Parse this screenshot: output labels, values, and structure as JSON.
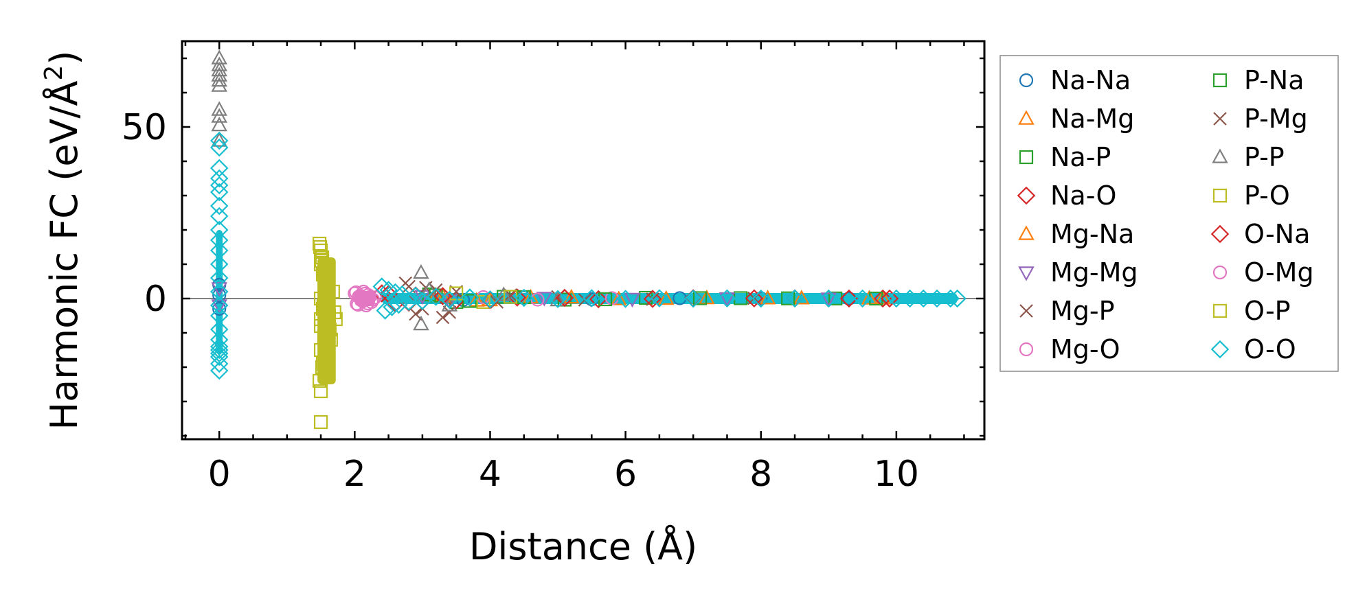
{
  "chart_data": {
    "type": "scatter",
    "title": "",
    "xlabel": "Distance (Å)",
    "ylabel_main": "Harmonic FC (eV/Å",
    "ylabel_sup": "2",
    "ylabel_close": ")",
    "xlim": [
      -0.55,
      11.3
    ],
    "ylim": [
      -41,
      75
    ],
    "xticks": [
      0,
      2,
      4,
      6,
      8,
      10
    ],
    "xtick_labels": [
      "0",
      "2",
      "4",
      "6",
      "8",
      "10"
    ],
    "yticks": [
      0,
      50
    ],
    "ytick_labels": [
      "0",
      "50"
    ],
    "x_minor_step": 0.5,
    "y_minor_step": 10,
    "zero_line": true,
    "grid": false,
    "legend_position": "outside-right",
    "series": [
      {
        "name": "Na-Na",
        "marker": "circle",
        "color": "#1f77b4",
        "x": [
          0,
          0,
          0,
          3.3,
          3.6,
          4.5,
          5.5,
          6.8,
          8.0,
          9.3
        ],
        "y": [
          4,
          -3,
          1,
          0.5,
          -0.4,
          0.3,
          -0.2,
          0.1,
          0.05,
          0
        ]
      },
      {
        "name": "Na-Mg",
        "marker": "triangle-up",
        "color": "#ff7f0e",
        "x": [
          3.2,
          3.8,
          4.6,
          5.9,
          7.2,
          8.6,
          9.8
        ],
        "y": [
          0.8,
          -0.6,
          0.3,
          -0.2,
          0.1,
          0.05,
          0.02
        ]
      },
      {
        "name": "Na-P",
        "marker": "square",
        "color": "#2ca02c",
        "x": [
          3.1,
          3.5,
          4.2,
          5.1,
          6.3,
          7.7,
          9.1
        ],
        "y": [
          1.2,
          -1.0,
          0.5,
          -0.3,
          0.2,
          0.1,
          0.02
        ]
      },
      {
        "name": "Na-O",
        "marker": "diamond",
        "color": "#d62728",
        "x": [
          2.4,
          2.6,
          2.9,
          3.5,
          4.4,
          5.6,
          7.0,
          8.5,
          9.8
        ],
        "y": [
          1.5,
          -1.4,
          0.9,
          -0.5,
          0.3,
          -0.2,
          0.1,
          0.05,
          0.0
        ]
      },
      {
        "name": "Mg-Na",
        "marker": "triangle-up",
        "color": "#ff7f0e",
        "x": [
          3.3,
          4.0,
          5.2,
          6.6,
          8.1,
          9.6
        ],
        "y": [
          0.6,
          -0.5,
          0.3,
          -0.1,
          0.05,
          0.0
        ]
      },
      {
        "name": "Mg-Mg",
        "marker": "triangle-down",
        "color": "#9467bd",
        "x": [
          0,
          0,
          3.0,
          3.4,
          4.8,
          6.1,
          7.5,
          9.0
        ],
        "y": [
          3,
          -2,
          0.7,
          -0.6,
          0.2,
          -0.1,
          0.05,
          0.0
        ]
      },
      {
        "name": "Mg-P",
        "marker": "x",
        "color": "#8c564b",
        "x": [
          2.75,
          2.9,
          3.05,
          3.3,
          3.5,
          4.1,
          5.0,
          6.4,
          7.9
        ],
        "y": [
          4.5,
          -4.5,
          3.2,
          -5.5,
          2.0,
          -1.0,
          0.5,
          -0.2,
          0.1
        ]
      },
      {
        "name": "Mg-O",
        "marker": "circle",
        "color": "#e377c2",
        "x": [
          2.0,
          2.03,
          2.06,
          2.1,
          2.13,
          2.17,
          2.2,
          2.25,
          2.3,
          3.9,
          4.7,
          5.8
        ],
        "y": [
          1.5,
          -1.5,
          0.5,
          -0.5,
          2.0,
          -2.0,
          1.0,
          -1.0,
          0.3,
          0.4,
          -0.3,
          0.1
        ]
      },
      {
        "name": "P-Na",
        "marker": "square",
        "color": "#2ca02c",
        "x": [
          3.2,
          3.7,
          4.5,
          5.7,
          7.1,
          8.4,
          9.7
        ],
        "y": [
          0.9,
          -0.7,
          0.4,
          -0.2,
          0.1,
          0.05,
          0.0
        ]
      },
      {
        "name": "P-Mg",
        "marker": "x",
        "color": "#8c564b",
        "x": [
          2.8,
          3.0,
          3.2,
          3.4,
          4.3,
          5.4
        ],
        "y": [
          3.5,
          -3.0,
          2.5,
          -4.0,
          1.0,
          -0.4
        ]
      },
      {
        "name": "P-P",
        "marker": "triangle-up",
        "color": "#7f7f7f",
        "x": [
          0,
          0,
          0,
          0,
          0,
          0,
          0,
          0,
          0,
          0,
          2.98,
          2.98,
          3.1,
          3.4,
          4.2,
          5.0
        ],
        "y": [
          70,
          68,
          66.5,
          65,
          63.5,
          62,
          55,
          53,
          50.5,
          46,
          7.5,
          -7.5,
          2.5,
          -2.0,
          1.0,
          -0.5
        ]
      },
      {
        "name": "P-O",
        "marker": "square",
        "color": "#bcbd22",
        "x": [
          1.48,
          1.5,
          1.52,
          1.5,
          1.55,
          1.6,
          1.57,
          1.5,
          1.53,
          1.62,
          1.5,
          1.55,
          1.58,
          1.6,
          1.52,
          1.48,
          1.65,
          1.72,
          3.5,
          3.9,
          4.3
        ],
        "y": [
          16,
          14,
          12,
          10,
          8,
          6,
          3,
          0,
          -3,
          -5,
          -8,
          -11,
          -14,
          -17,
          -20,
          -24,
          -12,
          -6,
          1.5,
          -1.0,
          0.5
        ]
      },
      {
        "name": "O-Na",
        "marker": "diamond",
        "color": "#d62728",
        "x": [
          2.5,
          2.8,
          3.3,
          4.0,
          5.1,
          6.4,
          7.9,
          9.3,
          9.9
        ],
        "y": [
          1.3,
          -1.2,
          0.7,
          -0.4,
          0.2,
          -0.1,
          0.05,
          0.0,
          0.0
        ]
      },
      {
        "name": "O-Mg",
        "marker": "circle",
        "color": "#e377c2",
        "x": [
          2.02,
          2.05,
          2.08,
          2.12,
          2.15,
          2.19,
          2.22,
          2.27
        ],
        "y": [
          1.8,
          -1.8,
          0.8,
          -0.8,
          1.4,
          -1.4,
          0.4,
          -0.3
        ]
      },
      {
        "name": "O-P",
        "marker": "square",
        "color": "#bcbd22",
        "x": [
          1.49,
          1.51,
          1.53,
          1.56,
          1.59,
          1.54,
          1.5,
          1.56,
          1.61,
          1.5,
          1.53,
          1.57,
          1.5,
          1.63,
          1.7,
          1.68,
          1.5
        ],
        "y": [
          15,
          11,
          7,
          4,
          1,
          -2,
          -6,
          -9,
          -12,
          -15,
          -19,
          -22,
          -27,
          -9,
          -4,
          2,
          -36
        ]
      },
      {
        "name": "O-O",
        "marker": "diamond",
        "color": "#17becf",
        "x": [
          0,
          0,
          0,
          0,
          0,
          0,
          0,
          0,
          0,
          0,
          0,
          0,
          0,
          0,
          0,
          0,
          0,
          0,
          0,
          0,
          0,
          0,
          0,
          0,
          2.4,
          2.45,
          2.5,
          2.55,
          2.6,
          2.65,
          2.7,
          2.8,
          2.9,
          3.0,
          3.2,
          3.4,
          3.7,
          4.0,
          4.5,
          5.0,
          5.5,
          6.0,
          6.5,
          7.0,
          7.5,
          8.0,
          8.5,
          9.0,
          9.5,
          10.0,
          10.2,
          10.4,
          10.6,
          10.8,
          10.9
        ],
        "y": [
          46,
          44,
          38,
          35,
          33,
          31,
          27,
          24,
          20,
          17,
          14,
          10,
          6,
          2,
          -2,
          -5,
          -9,
          -12,
          -14,
          -15,
          -16,
          -17,
          -19,
          -21,
          3.5,
          -3.5,
          2.5,
          -2.5,
          1.8,
          -1.8,
          1.2,
          -1.0,
          0.8,
          -0.7,
          0.5,
          -0.4,
          0.3,
          -0.25,
          0.2,
          -0.15,
          0.1,
          -0.1,
          0.08,
          -0.05,
          0.04,
          -0.03,
          0.02,
          0.0,
          0.01,
          0.0,
          0.0,
          0.0,
          0.0,
          0.0,
          0.0
        ]
      }
    ]
  }
}
